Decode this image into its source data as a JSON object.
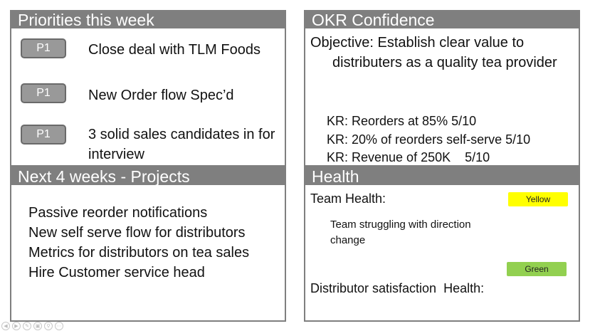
{
  "priorities": {
    "title": "Priorities this week",
    "items": [
      {
        "badge": "P1",
        "text": "Close deal with TLM Foods"
      },
      {
        "badge": "P1",
        "text": "New Order flow Spec’d"
      },
      {
        "badge": "P1",
        "text": "3 solid sales candidates in for interview"
      }
    ]
  },
  "projects": {
    "title": "Next 4 weeks - Projects",
    "items": [
      "Passive reorder notifications",
      "New self serve flow for distributors",
      "Metrics for distributors on tea sales",
      "Hire Customer service head"
    ]
  },
  "okr": {
    "title": "OKR Confidence",
    "objective": "Objective: Establish clear value to distributers as a quality tea provider",
    "krs": [
      "KR: Reorders at 85% 5/10",
      "KR: 20% of reorders self-serve 5/10",
      "KR: Revenue of 250K    5/10"
    ]
  },
  "health": {
    "title": "Health",
    "team_label": "Team Health:",
    "team_status": "Yellow",
    "team_status_color": "#ffff00",
    "team_note": "Team struggling with direction change",
    "distributor_label": "Distributor satisfaction  Health:",
    "distributor_status": "Green",
    "distributor_status_color": "#92d050"
  },
  "toolbar_icons": [
    "prev-icon",
    "next-icon",
    "pen-icon",
    "slides-icon",
    "zoom-icon",
    "more-icon"
  ]
}
